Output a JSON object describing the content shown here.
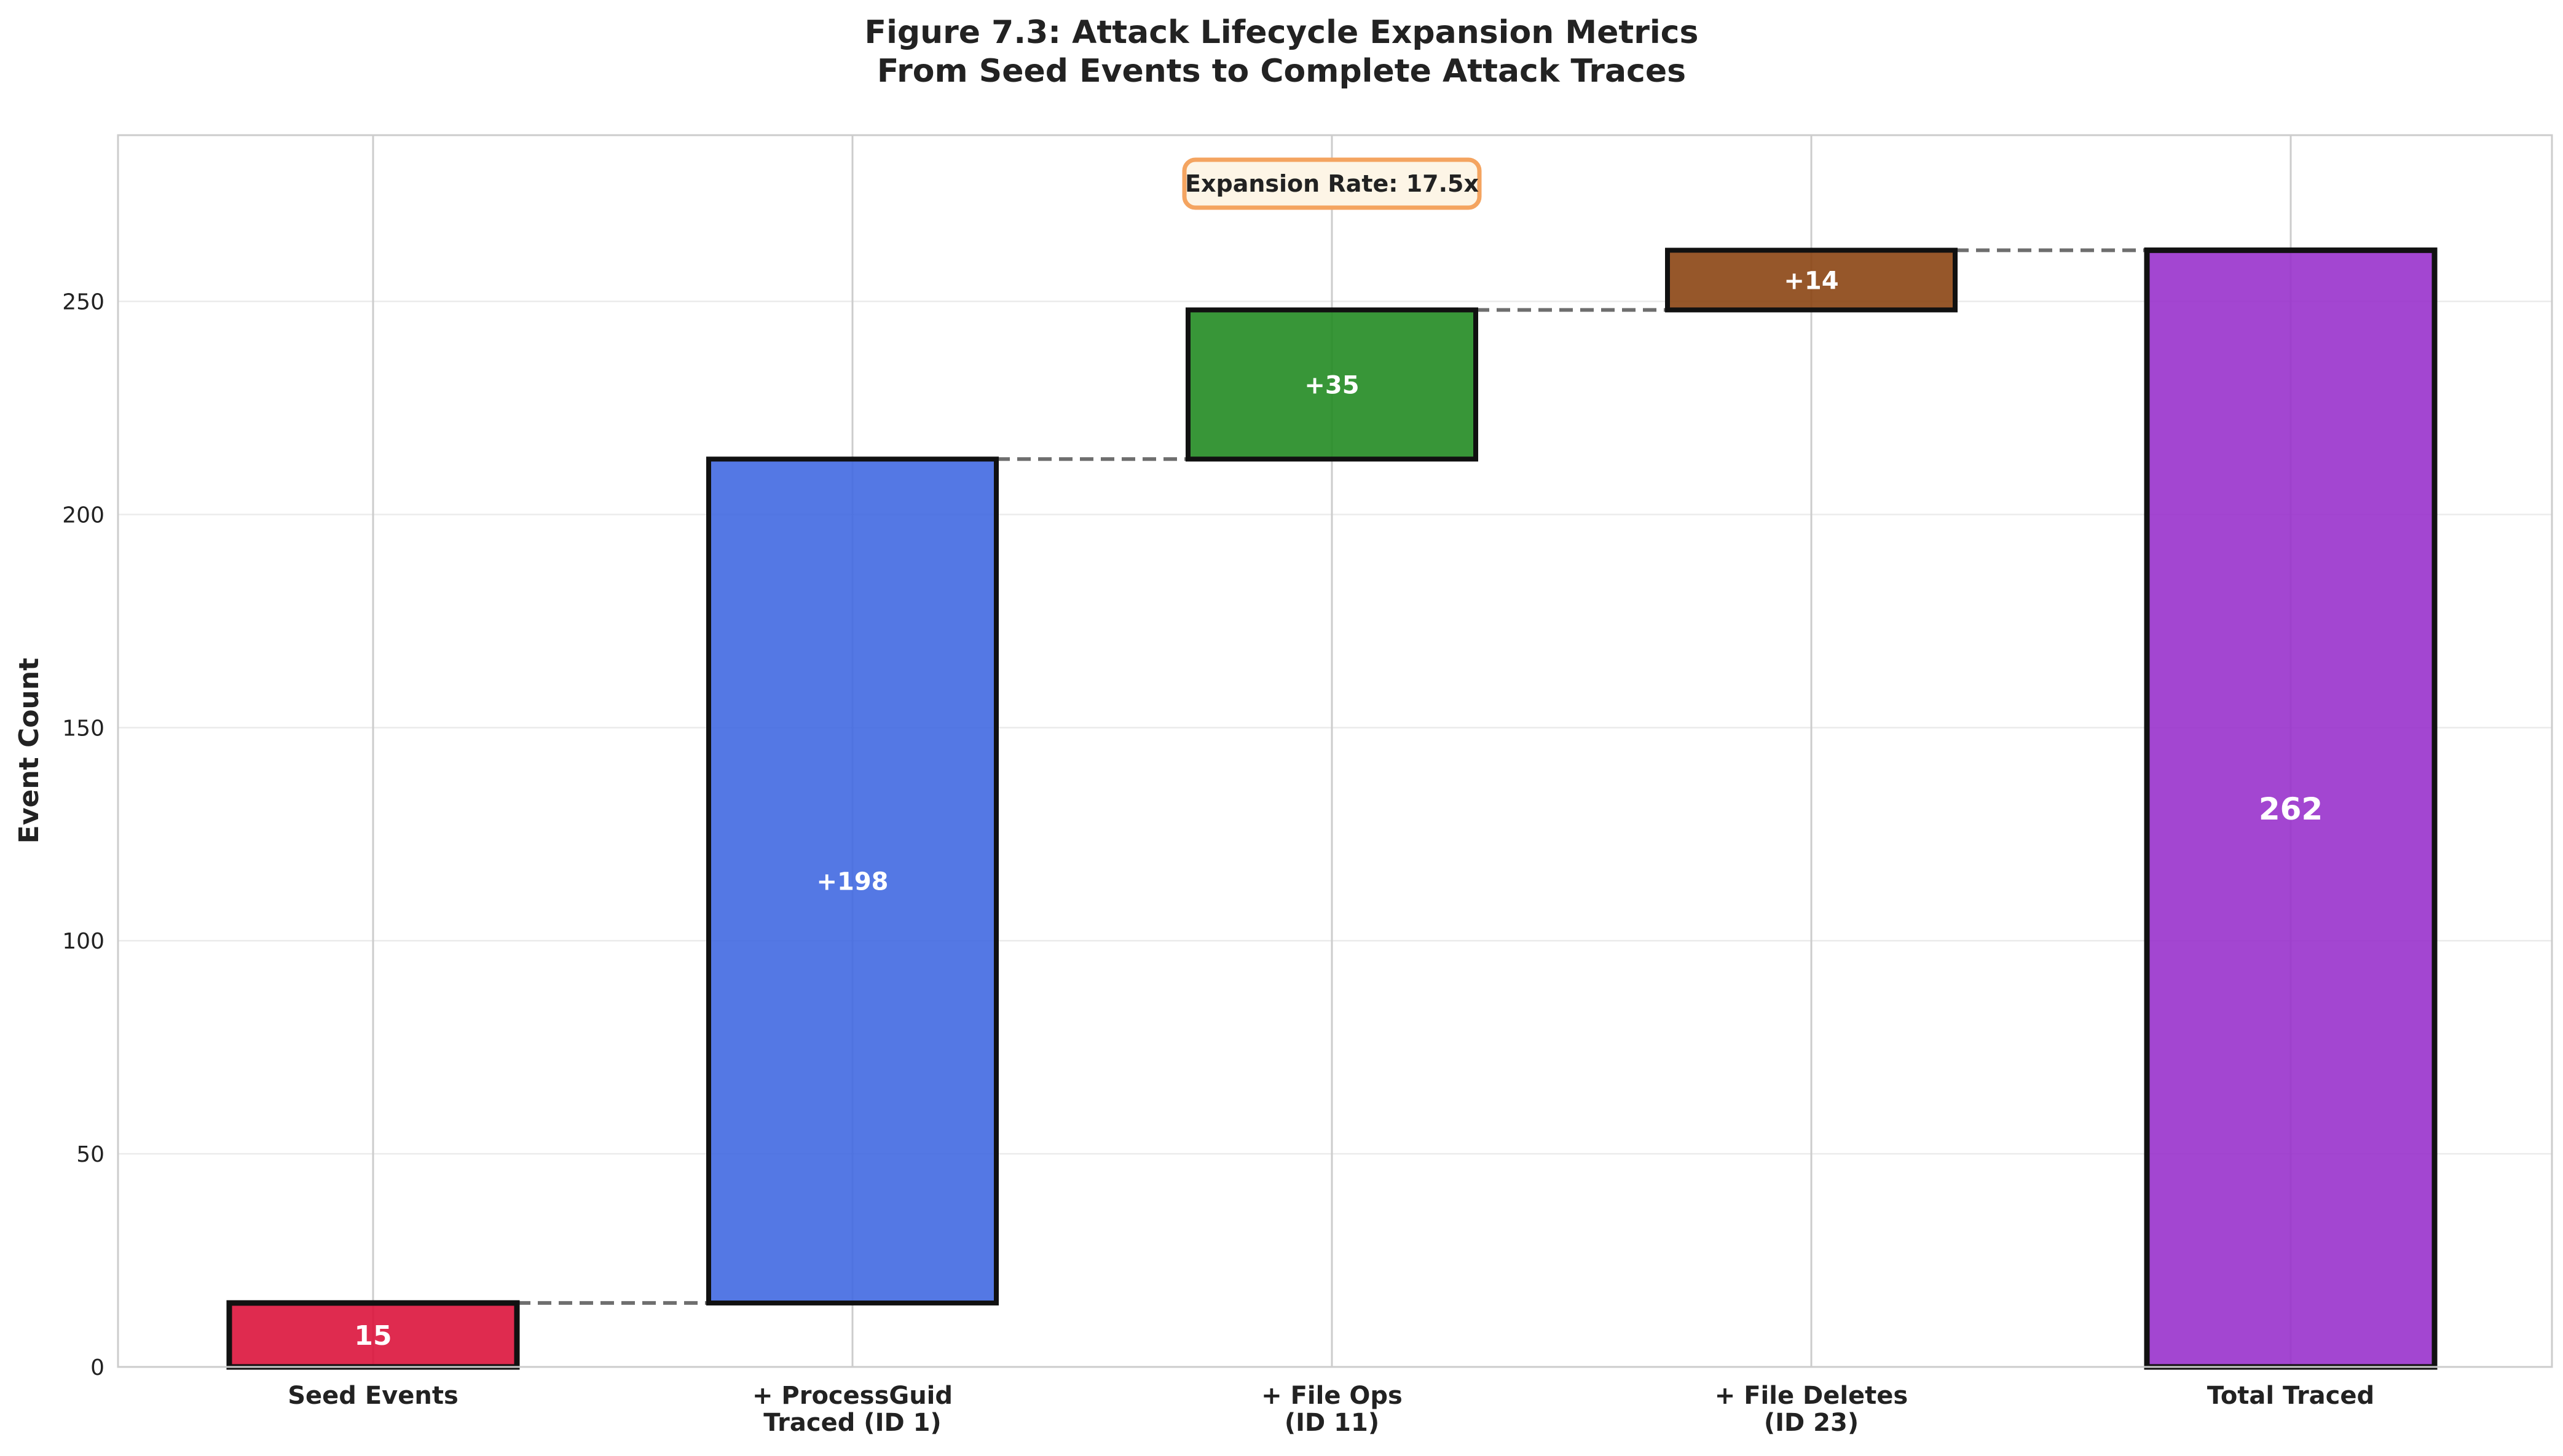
{
  "chart_data": {
    "type": "bar",
    "subtype": "waterfall",
    "title_lines": [
      "Figure 7.3: Attack Lifecycle Expansion Metrics",
      "From Seed Events to Complete Attack Traces"
    ],
    "xlabel": "",
    "ylabel": "Event Count",
    "ylim": [
      0,
      289
    ],
    "yticks": [
      0,
      50,
      100,
      150,
      200,
      250
    ],
    "grid": true,
    "categories": [
      [
        "Seed Events"
      ],
      [
        "+ ProcessGuid",
        "Traced (ID 1)"
      ],
      [
        "+ File Ops",
        "(ID 11)"
      ],
      [
        "+ File Deletes",
        "(ID 23)"
      ],
      [
        "Total Traced"
      ]
    ],
    "bars": [
      {
        "base": 0,
        "top": 15,
        "label": "15",
        "color": "#dc143c"
      },
      {
        "base": 15,
        "top": 213,
        "label": "+198",
        "color": "#4169e1"
      },
      {
        "base": 213,
        "top": 248,
        "label": "+35",
        "color": "#228b22"
      },
      {
        "base": 248,
        "top": 262,
        "label": "+14",
        "color": "#8b4513"
      },
      {
        "base": 0,
        "top": 262,
        "label": "262",
        "color": "#9932cc"
      }
    ],
    "connectors": true,
    "annotation": {
      "text": "Expansion Rate: 17.5x",
      "border_color": "#f4a460",
      "fill_color": "#fdf5e6"
    }
  }
}
